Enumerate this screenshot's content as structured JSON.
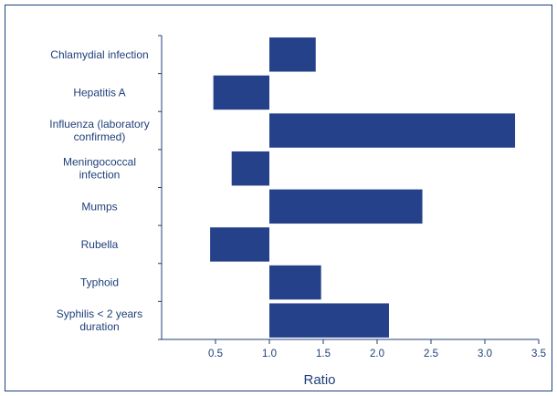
{
  "chart_data": {
    "type": "bar",
    "orientation": "horizontal",
    "baseline": 1.0,
    "categories": [
      [
        "Chlamydial infection"
      ],
      [
        "Hepatitis A"
      ],
      [
        "Influenza (laboratory",
        "confirmed)"
      ],
      [
        "Meningococcal",
        "infection"
      ],
      [
        "Mumps"
      ],
      [
        "Rubella"
      ],
      [
        "Typhoid"
      ],
      [
        "Syphilis < 2 years",
        "duration"
      ]
    ],
    "values": [
      1.43,
      0.48,
      3.28,
      0.65,
      2.42,
      0.45,
      1.48,
      2.11
    ],
    "xlabel": "Ratio",
    "xlim": [
      0,
      3.5
    ],
    "xticks": [
      0.5,
      1.0,
      1.5,
      2.0,
      2.5,
      3.0,
      3.5
    ],
    "xtick_labels": [
      "0.5",
      "1.0",
      "1.5",
      "2.0",
      "2.5",
      "3.0",
      "3.5"
    ],
    "grid": false,
    "bar_color": "#25418a",
    "axis_color": "#1f3f7a"
  }
}
